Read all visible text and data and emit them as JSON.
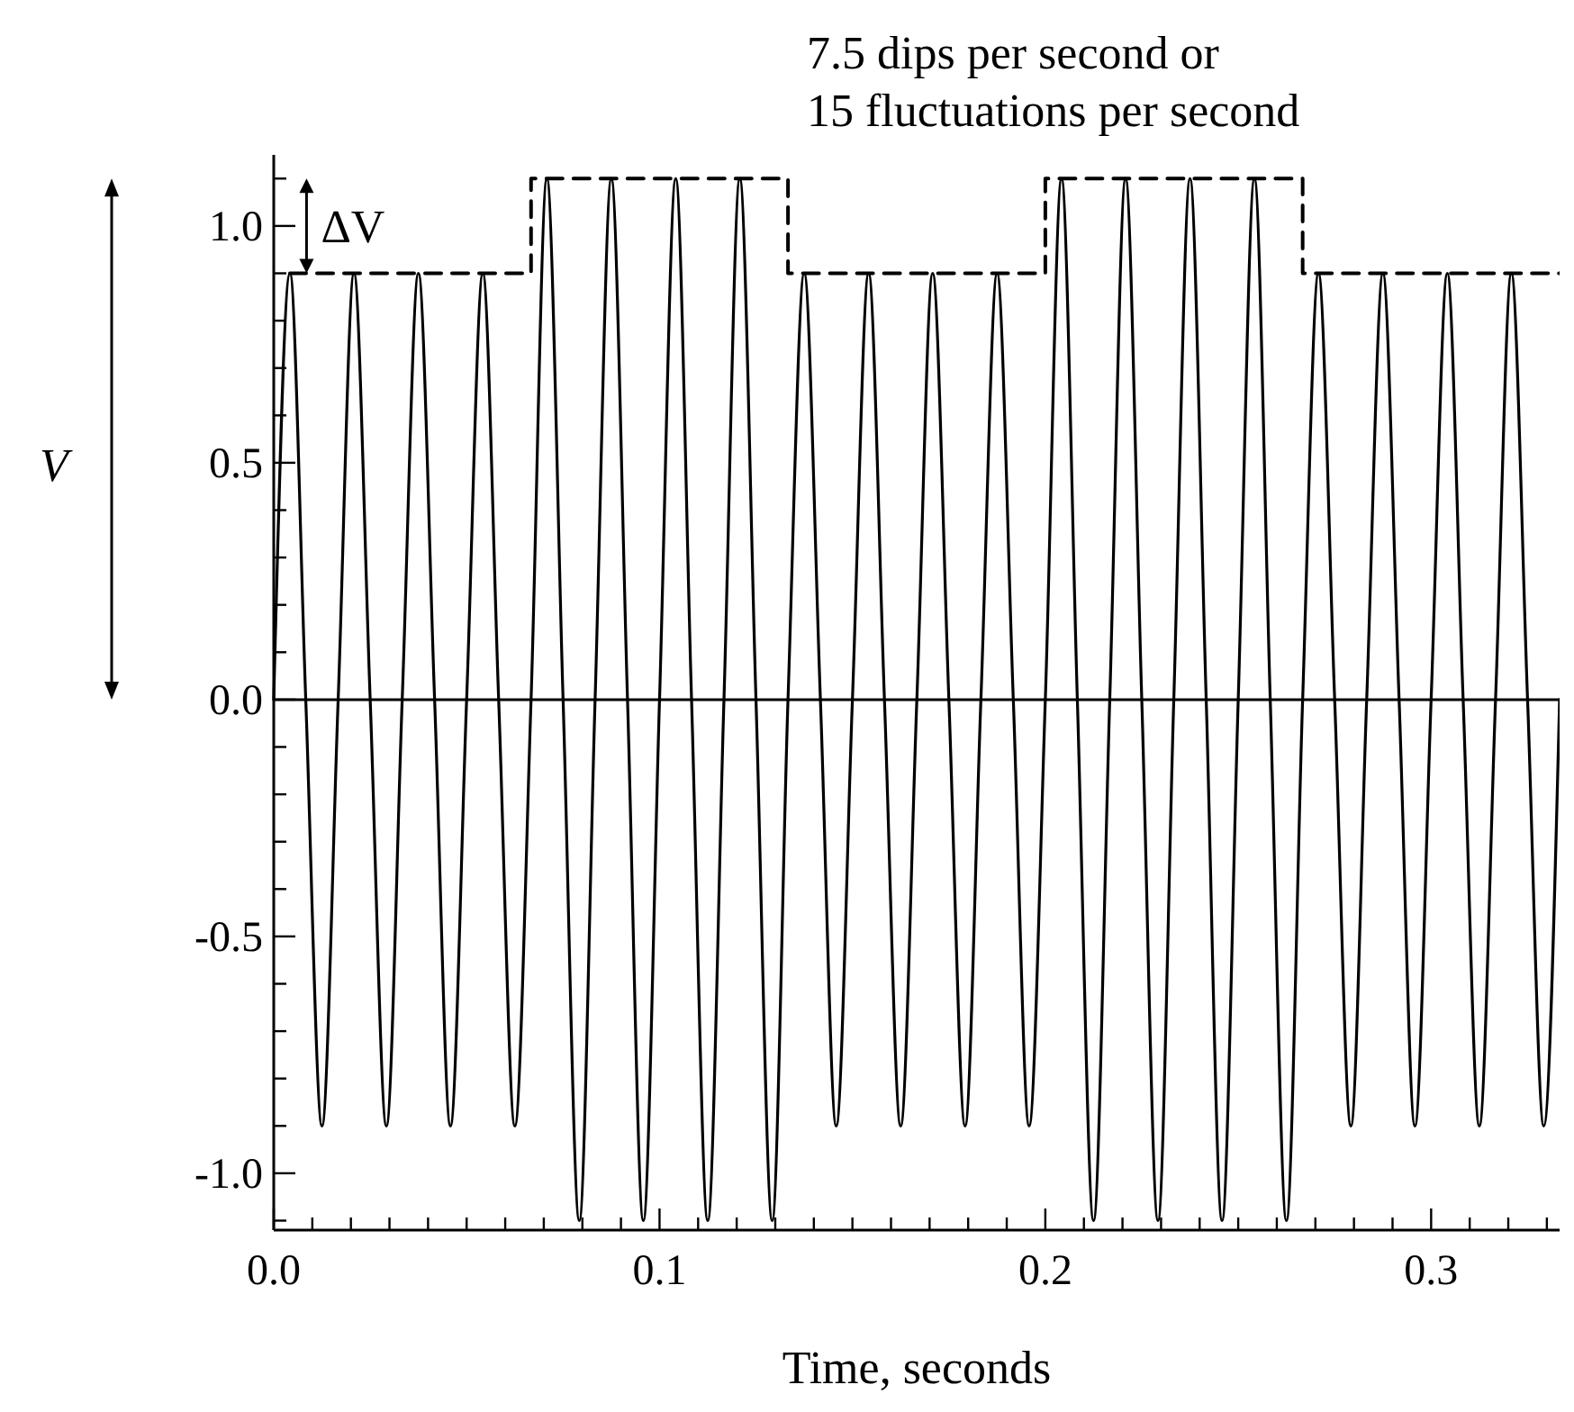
{
  "chart_data": {
    "type": "line",
    "xlabel": "Time, seconds",
    "ylabel": "V",
    "annotations": [
      "7.5 dips per second or\n15 fluctuations per second",
      "ΔV"
    ],
    "xlim": [
      0,
      0.3333
    ],
    "ylim": [
      -1.12,
      1.15
    ],
    "xticks": [
      {
        "value": 0,
        "label": "0.0"
      },
      {
        "value": 0.01,
        "label": null
      },
      {
        "value": 0.02,
        "label": null
      },
      {
        "value": 0.03,
        "label": null
      },
      {
        "value": 0.04,
        "label": null
      },
      {
        "value": 0.05,
        "label": null
      },
      {
        "value": 0.06,
        "label": null
      },
      {
        "value": 0.07,
        "label": null
      },
      {
        "value": 0.08,
        "label": null
      },
      {
        "value": 0.09,
        "label": null
      },
      {
        "value": 0.1,
        "label": "0.1"
      },
      {
        "value": 0.11,
        "label": null
      },
      {
        "value": 0.12,
        "label": null
      },
      {
        "value": 0.13,
        "label": null
      },
      {
        "value": 0.14,
        "label": null
      },
      {
        "value": 0.15,
        "label": null
      },
      {
        "value": 0.16,
        "label": null
      },
      {
        "value": 0.17,
        "label": null
      },
      {
        "value": 0.18,
        "label": null
      },
      {
        "value": 0.19,
        "label": null
      },
      {
        "value": 0.2,
        "label": "0.2"
      },
      {
        "value": 0.21,
        "label": null
      },
      {
        "value": 0.22,
        "label": null
      },
      {
        "value": 0.23,
        "label": null
      },
      {
        "value": 0.24,
        "label": null
      },
      {
        "value": 0.25,
        "label": null
      },
      {
        "value": 0.26,
        "label": null
      },
      {
        "value": 0.27,
        "label": null
      },
      {
        "value": 0.28,
        "label": null
      },
      {
        "value": 0.29,
        "label": null
      },
      {
        "value": 0.3,
        "label": "0.3"
      },
      {
        "value": 0.31,
        "label": null
      },
      {
        "value": 0.32,
        "label": null
      },
      {
        "value": 0.33,
        "label": null
      }
    ],
    "yticks": [
      {
        "value": -1.1,
        "label": null
      },
      {
        "value": -1,
        "label": "-1.0"
      },
      {
        "value": -0.9,
        "label": null
      },
      {
        "value": -0.8,
        "label": null
      },
      {
        "value": -0.7,
        "label": null
      },
      {
        "value": -0.6,
        "label": null
      },
      {
        "value": -0.5,
        "label": "-0.5"
      },
      {
        "value": -0.4,
        "label": null
      },
      {
        "value": -0.3,
        "label": null
      },
      {
        "value": -0.2,
        "label": null
      },
      {
        "value": -0.1,
        "label": null
      },
      {
        "value": 0,
        "label": "0.0"
      },
      {
        "value": 0.1,
        "label": null
      },
      {
        "value": 0.2,
        "label": null
      },
      {
        "value": 0.3,
        "label": null
      },
      {
        "value": 0.4,
        "label": null
      },
      {
        "value": 0.5,
        "label": "0.5"
      },
      {
        "value": 0.6,
        "label": null
      },
      {
        "value": 0.7,
        "label": null
      },
      {
        "value": 0.8,
        "label": null
      },
      {
        "value": 0.9,
        "label": null
      },
      {
        "value": 1,
        "label": "1.0"
      },
      {
        "value": 1.1,
        "label": null
      }
    ],
    "ref_lines": [
      {
        "axis": "y",
        "value": 0,
        "color": "#000000",
        "line_style": "solid"
      }
    ],
    "series": [
      {
        "color": "#000000",
        "line_style": "solid",
        "x": [
          0,
          0.0042,
          0.0083,
          0.0125,
          0.0167,
          0.0208,
          0.025,
          0.0292,
          0.0333,
          0.0375,
          0.0417,
          0.0458,
          0.05,
          0.0542,
          0.0583,
          0.0625,
          0.0667,
          0.0708,
          0.075,
          0.0792,
          0.0833,
          0.0875,
          0.0917,
          0.0958,
          0.1,
          0.1042,
          0.1083,
          0.1125,
          0.1167,
          0.1208,
          0.125,
          0.1292,
          0.1333,
          0.1375,
          0.1417,
          0.1458,
          0.15,
          0.1542,
          0.1583,
          0.1625,
          0.1667,
          0.1708,
          0.175,
          0.1792,
          0.1833,
          0.1875,
          0.1917,
          0.1958,
          0.2,
          0.2042,
          0.2083,
          0.2125,
          0.2167,
          0.2208,
          0.225,
          0.2292,
          0.2333,
          0.2375,
          0.2417,
          0.2458,
          0.25,
          0.2542,
          0.2583,
          0.2625,
          0.2667,
          0.2708,
          0.275,
          0.2792,
          0.2833,
          0.2875,
          0.2917,
          0.2958,
          0.3,
          0.3042,
          0.3083,
          0.3125,
          0.3167,
          0.3208,
          0.325,
          0.3292,
          0.3333
        ],
        "values": [
          0,
          0.9,
          0,
          -0.9,
          0,
          0.9,
          0,
          -0.9,
          0,
          0.9,
          0,
          -0.9,
          0,
          0.9,
          0,
          -0.9,
          0,
          1.1,
          0,
          -1.1,
          0,
          1.1,
          0,
          -1.1,
          0,
          1.1,
          0,
          -1.1,
          0,
          1.1,
          0,
          -1.1,
          0,
          0.9,
          0,
          -0.9,
          0,
          0.9,
          0,
          -0.9,
          0,
          0.9,
          0,
          -0.9,
          0,
          0.9,
          0,
          -0.9,
          0,
          1.1,
          0,
          -1.1,
          0,
          1.1,
          0,
          -1.1,
          0,
          1.1,
          0,
          -1.1,
          0,
          1.1,
          0,
          -1.1,
          0,
          0.9,
          0,
          -0.9,
          0,
          0.9,
          0,
          -0.9,
          0,
          0.9,
          0,
          -0.9,
          0,
          0.9,
          0,
          -0.9,
          0
        ]
      },
      {
        "color": "#000000",
        "line_style": "dashed",
        "x": [
          0.0042,
          0.0667,
          0.0667,
          0.1333,
          0.1333,
          0.2,
          0.2,
          0.2667,
          0.2667,
          0.3333
        ],
        "values": [
          0.9,
          0.9,
          1.1,
          1.1,
          0.9,
          0.9,
          1.1,
          1.1,
          0.9,
          0.9
        ]
      }
    ]
  }
}
